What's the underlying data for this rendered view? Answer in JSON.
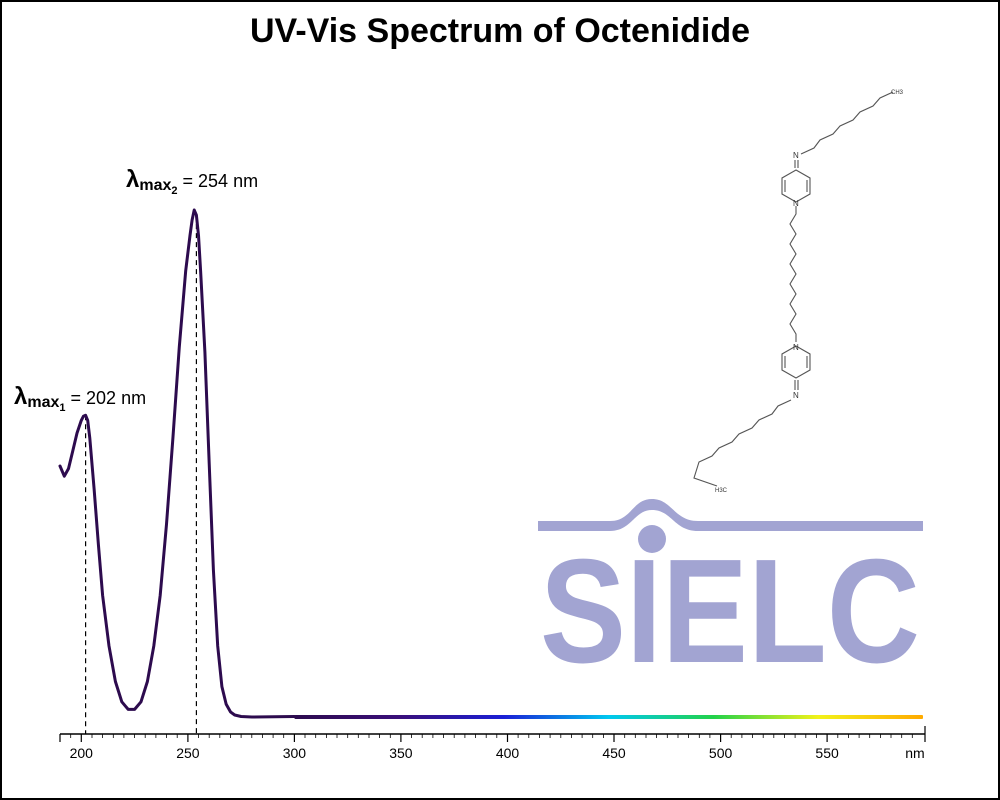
{
  "chart_data": {
    "type": "line",
    "title": "UV-Vis Spectrum of Octenidide",
    "xlabel": "",
    "x_unit": "nm",
    "ylabel": "",
    "xlim": [
      190,
      595
    ],
    "ylim": [
      0,
      1
    ],
    "x_ticks": [
      200,
      250,
      300,
      350,
      400,
      450,
      500,
      550
    ],
    "grid": false,
    "legend": "none",
    "series": [
      {
        "x": [
          190,
          192,
          194,
          196,
          198,
          200,
          201,
          202,
          203,
          204,
          206,
          208,
          210,
          213,
          216,
          219,
          222,
          225,
          228,
          231,
          234,
          237,
          240,
          243,
          246,
          249,
          251,
          252,
          253,
          254,
          255,
          256,
          258,
          260,
          262,
          264,
          266,
          268,
          270,
          272,
          275,
          280,
          300,
          350,
          400,
          450,
          500,
          550,
          595
        ],
        "y": [
          0.495,
          0.475,
          0.49,
          0.525,
          0.56,
          0.585,
          0.593,
          0.595,
          0.585,
          0.55,
          0.45,
          0.34,
          0.24,
          0.14,
          0.07,
          0.03,
          0.015,
          0.015,
          0.03,
          0.07,
          0.14,
          0.24,
          0.38,
          0.55,
          0.73,
          0.88,
          0.95,
          0.98,
          1.0,
          0.99,
          0.95,
          0.88,
          0.72,
          0.5,
          0.29,
          0.14,
          0.06,
          0.025,
          0.01,
          0.004,
          0.001,
          0.0,
          0.001,
          0.001,
          0.001,
          0.001,
          0.001,
          0.001,
          0.001
        ]
      }
    ],
    "annotations": [
      {
        "symbol": "λ",
        "sub": "max",
        "index": "1",
        "text": " = 202 nm",
        "x": 202
      },
      {
        "symbol": "λ",
        "sub": "max",
        "index": "2",
        "text": " = 254 nm",
        "x": 254
      }
    ],
    "spectrum_gradient": {
      "x_range": [
        300,
        595
      ],
      "colors": [
        "#2d0b4e",
        "#3a0f7a",
        "#1a1fd6",
        "#00c8f0",
        "#22d24a",
        "#f2f21a",
        "#ffaa00"
      ]
    },
    "line_color": "#2d0b4e"
  },
  "logo": {
    "text": "SIELC",
    "color": "#a2a4d2"
  },
  "molecule": {
    "atoms": [
      "N",
      "N",
      "N",
      "N",
      "CH3",
      "H3C"
    ]
  }
}
